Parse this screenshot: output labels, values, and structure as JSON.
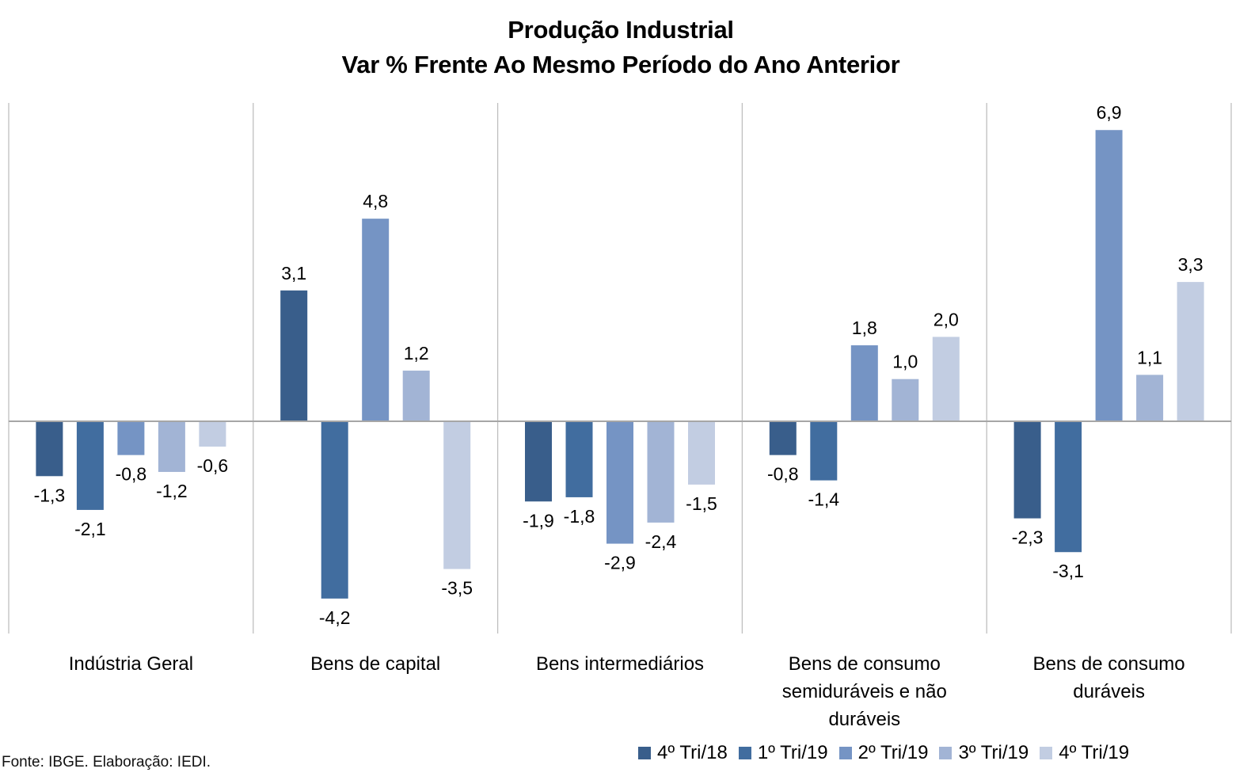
{
  "chart_data": {
    "type": "bar",
    "title": "Produção Industrial",
    "subtitle": "Var % Frente Ao Mesmo Período do Ano Anterior",
    "xlabel": "",
    "ylabel": "",
    "ylim": [
      -5.0,
      7.5
    ],
    "grid": false,
    "legend_position": "bottom-right",
    "categories": [
      [
        "Indústria Geral"
      ],
      [
        "Bens de capital"
      ],
      [
        "Bens intermediários"
      ],
      [
        "Bens de consumo",
        "semiduráveis e não",
        "duráveis"
      ],
      [
        "Bens de consumo",
        "duráveis"
      ]
    ],
    "series": [
      {
        "name": "4º Tri/18",
        "color": "#395E8B",
        "values": [
          -1.3,
          3.1,
          -1.9,
          -0.8,
          -2.3
        ],
        "labels": [
          "-1,3",
          "3,1",
          "-1,9",
          "-0,8",
          "-2,3"
        ]
      },
      {
        "name": "1º Tri/19",
        "color": "#416D9F",
        "values": [
          -2.1,
          -4.2,
          -1.8,
          -1.4,
          -3.1
        ],
        "labels": [
          "-2,1",
          "-4,2",
          "-1,8",
          "-1,4",
          "-3,1"
        ]
      },
      {
        "name": "2º Tri/19",
        "color": "#7594C4",
        "values": [
          -0.8,
          4.8,
          -2.9,
          1.8,
          6.9
        ],
        "labels": [
          "-0,8",
          "4,8",
          "-2,9",
          "1,8",
          "6,9"
        ]
      },
      {
        "name": "3º Tri/19",
        "color": "#A2B4D5",
        "values": [
          -1.2,
          1.2,
          -2.4,
          1.0,
          1.1
        ],
        "labels": [
          "-1,2",
          "1,2",
          "-2,4",
          "1,0",
          "1,1"
        ]
      },
      {
        "name": "4º Tri/19",
        "color": "#C2CDE2",
        "values": [
          -0.6,
          -3.5,
          -1.5,
          2.0,
          3.3
        ],
        "labels": [
          "-0,6",
          "-3,5",
          "-1,5",
          "2,0",
          "3,3"
        ]
      }
    ],
    "source": "Fonte: IBGE. Elaboração: IEDI."
  }
}
